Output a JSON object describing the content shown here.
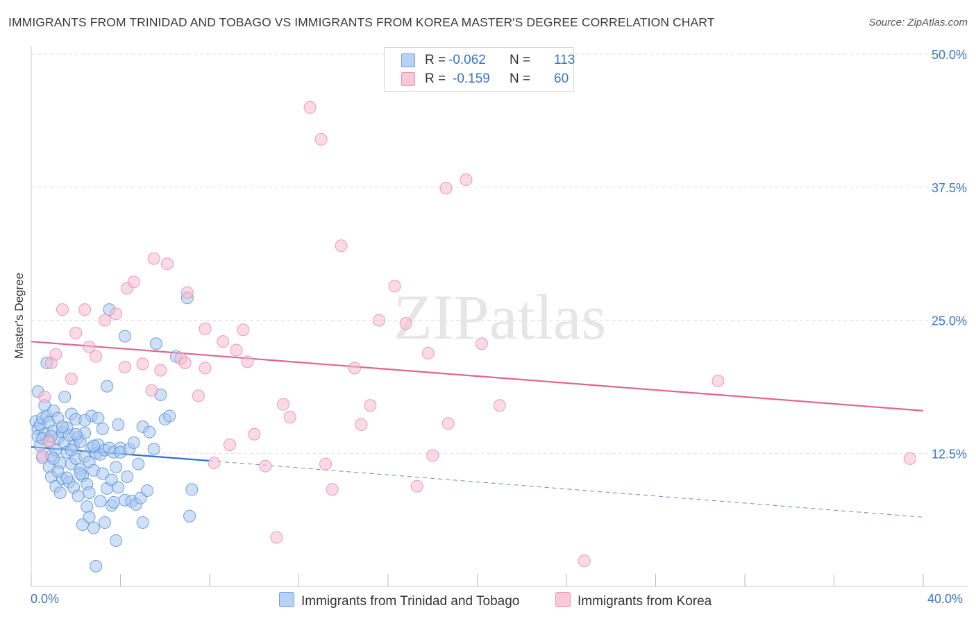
{
  "chart_title": "IMMIGRANTS FROM TRINIDAD AND TOBAGO VS IMMIGRANTS FROM KOREA MASTER'S DEGREE CORRELATION CHART",
  "source": "Source: ZipAtlas.com",
  "watermark": "ZIPatlas",
  "legend": {
    "r_label": "R =",
    "n_label": "N =",
    "rows": [
      {
        "r": "-0.062",
        "n": "113"
      },
      {
        "r": "-0.159",
        "n": "60"
      }
    ]
  },
  "bottom_legend": [
    "Immigrants from Trinidad and Tobago",
    "Immigrants from Korea"
  ],
  "colors": {
    "blue_fill": "#a9c8f0",
    "blue_stroke": "#5b91d6",
    "blue_line": "#2b6fcf",
    "pink_fill": "#f7bcd0",
    "pink_stroke": "#e58aa9",
    "pink_line": "#e0648f",
    "tick_text": "#3a76c8",
    "grid": "#dddddd"
  },
  "chart_data": {
    "type": "scatter",
    "title": "IMMIGRANTS FROM TRINIDAD AND TOBAGO VS IMMIGRANTS FROM KOREA MASTER'S DEGREE CORRELATION CHART",
    "xlabel": "",
    "ylabel": "Master's Degree",
    "xlim": [
      0,
      40
    ],
    "ylim": [
      0,
      50
    ],
    "x_tick_labels": [
      "0.0%",
      "40.0%"
    ],
    "y_ticks": [
      12.5,
      25.0,
      37.5,
      50.0
    ],
    "y_tick_labels": [
      "12.5%",
      "25.0%",
      "37.5%",
      "50.0%"
    ],
    "grid": true,
    "legend_position": "top-center",
    "series": [
      {
        "name": "Immigrants from Trinidad and Tobago",
        "r": -0.062,
        "n": 113,
        "trend": {
          "x_start": 0,
          "y_start": 13.1,
          "x_solid_end": 8.0,
          "y_solid_end": 11.8,
          "x_end": 40,
          "y_end": 6.5
        },
        "points": [
          [
            0.2,
            15.5
          ],
          [
            0.3,
            14.8
          ],
          [
            0.3,
            14.1
          ],
          [
            0.4,
            15.2
          ],
          [
            0.4,
            13.2
          ],
          [
            0.5,
            15.8
          ],
          [
            0.5,
            12.1
          ],
          [
            0.6,
            14.3
          ],
          [
            0.6,
            17.0
          ],
          [
            0.7,
            16.0
          ],
          [
            0.7,
            21.0
          ],
          [
            0.8,
            15.4
          ],
          [
            0.8,
            13.7
          ],
          [
            0.8,
            11.2
          ],
          [
            0.9,
            12.3
          ],
          [
            0.9,
            10.3
          ],
          [
            1.0,
            14.6
          ],
          [
            1.0,
            16.5
          ],
          [
            1.1,
            12.8
          ],
          [
            1.1,
            9.4
          ],
          [
            1.2,
            15.8
          ],
          [
            1.2,
            13.9
          ],
          [
            1.3,
            11.6
          ],
          [
            1.3,
            8.8
          ],
          [
            1.4,
            14.5
          ],
          [
            1.4,
            10.1
          ],
          [
            1.5,
            13.5
          ],
          [
            1.5,
            17.8
          ],
          [
            1.6,
            14.9
          ],
          [
            1.6,
            12.6
          ],
          [
            1.7,
            9.8
          ],
          [
            1.7,
            14.2
          ],
          [
            1.8,
            16.2
          ],
          [
            1.8,
            11.5
          ],
          [
            1.9,
            13.2
          ],
          [
            1.9,
            9.3
          ],
          [
            2.0,
            15.7
          ],
          [
            2.0,
            12.0
          ],
          [
            2.1,
            14.0
          ],
          [
            2.1,
            8.5
          ],
          [
            2.2,
            11.0
          ],
          [
            2.2,
            13.6
          ],
          [
            2.3,
            10.4
          ],
          [
            2.3,
            5.8
          ],
          [
            2.4,
            14.4
          ],
          [
            2.4,
            12.2
          ],
          [
            2.5,
            7.5
          ],
          [
            2.5,
            9.6
          ],
          [
            2.6,
            11.7
          ],
          [
            2.6,
            6.5
          ],
          [
            2.7,
            13.0
          ],
          [
            2.7,
            16.0
          ],
          [
            2.8,
            5.5
          ],
          [
            2.8,
            10.9
          ],
          [
            2.9,
            12.5
          ],
          [
            2.9,
            1.9
          ],
          [
            3.0,
            15.8
          ],
          [
            3.0,
            13.3
          ],
          [
            3.1,
            12.4
          ],
          [
            3.1,
            8.0
          ],
          [
            3.2,
            14.8
          ],
          [
            3.2,
            10.6
          ],
          [
            3.3,
            6.0
          ],
          [
            3.3,
            12.8
          ],
          [
            3.4,
            18.8
          ],
          [
            3.4,
            9.2
          ],
          [
            3.5,
            26.0
          ],
          [
            3.5,
            13.0
          ],
          [
            3.6,
            7.6
          ],
          [
            3.6,
            10.0
          ],
          [
            3.7,
            12.6
          ],
          [
            3.7,
            7.9
          ],
          [
            3.8,
            4.3
          ],
          [
            3.8,
            11.2
          ],
          [
            3.9,
            9.3
          ],
          [
            3.9,
            15.2
          ],
          [
            4.0,
            13.0
          ],
          [
            4.0,
            12.6
          ],
          [
            4.2,
            23.5
          ],
          [
            4.2,
            8.1
          ],
          [
            4.3,
            10.3
          ],
          [
            4.4,
            12.9
          ],
          [
            4.5,
            8.0
          ],
          [
            4.6,
            13.5
          ],
          [
            4.7,
            7.7
          ],
          [
            4.8,
            11.5
          ],
          [
            4.9,
            8.3
          ],
          [
            5.0,
            15.0
          ],
          [
            5.0,
            6.0
          ],
          [
            5.2,
            9.0
          ],
          [
            5.3,
            14.5
          ],
          [
            5.5,
            12.9
          ],
          [
            5.6,
            22.8
          ],
          [
            5.8,
            18.0
          ],
          [
            6.0,
            15.7
          ],
          [
            6.2,
            16.0
          ],
          [
            6.5,
            21.6
          ],
          [
            7.0,
            27.1
          ],
          [
            7.1,
            6.6
          ],
          [
            7.2,
            9.1
          ],
          [
            0.3,
            18.3
          ],
          [
            0.5,
            13.9
          ],
          [
            0.9,
            14.1
          ],
          [
            1.0,
            12.0
          ],
          [
            1.2,
            10.8
          ],
          [
            1.4,
            15.0
          ],
          [
            1.6,
            10.2
          ],
          [
            1.8,
            12.8
          ],
          [
            2.0,
            14.3
          ],
          [
            2.2,
            10.6
          ],
          [
            2.4,
            15.6
          ],
          [
            2.6,
            8.8
          ],
          [
            2.8,
            13.2
          ]
        ]
      },
      {
        "name": "Immigrants from Korea",
        "r": -0.159,
        "n": 60,
        "trend": {
          "x_start": 0,
          "y_start": 23.0,
          "x_end": 40,
          "y_end": 16.5
        },
        "points": [
          [
            0.5,
            12.3
          ],
          [
            0.6,
            17.8
          ],
          [
            0.8,
            13.6
          ],
          [
            0.9,
            21.0
          ],
          [
            1.1,
            21.8
          ],
          [
            1.4,
            26.0
          ],
          [
            1.8,
            19.5
          ],
          [
            2.0,
            23.8
          ],
          [
            2.4,
            26.0
          ],
          [
            2.6,
            22.5
          ],
          [
            2.9,
            21.6
          ],
          [
            3.3,
            25.0
          ],
          [
            3.8,
            25.6
          ],
          [
            4.2,
            20.6
          ],
          [
            4.3,
            28.0
          ],
          [
            4.6,
            28.6
          ],
          [
            5.0,
            20.9
          ],
          [
            5.4,
            18.4
          ],
          [
            5.5,
            30.8
          ],
          [
            5.8,
            20.3
          ],
          [
            6.1,
            30.3
          ],
          [
            6.7,
            21.4
          ],
          [
            6.9,
            21.0
          ],
          [
            7.0,
            27.6
          ],
          [
            7.5,
            17.9
          ],
          [
            7.8,
            20.5
          ],
          [
            7.8,
            24.2
          ],
          [
            8.2,
            11.6
          ],
          [
            8.6,
            23.0
          ],
          [
            8.9,
            13.3
          ],
          [
            9.2,
            22.2
          ],
          [
            9.5,
            24.1
          ],
          [
            9.7,
            21.1
          ],
          [
            10.0,
            14.3
          ],
          [
            10.5,
            11.3
          ],
          [
            11.0,
            4.6
          ],
          [
            11.3,
            17.1
          ],
          [
            11.6,
            15.9
          ],
          [
            12.5,
            45.0
          ],
          [
            13.0,
            42.0
          ],
          [
            13.2,
            11.5
          ],
          [
            13.5,
            9.1
          ],
          [
            13.9,
            32.0
          ],
          [
            14.5,
            20.5
          ],
          [
            14.8,
            15.2
          ],
          [
            15.2,
            17.0
          ],
          [
            15.6,
            25.0
          ],
          [
            16.3,
            28.2
          ],
          [
            16.8,
            24.7
          ],
          [
            17.3,
            9.4
          ],
          [
            17.8,
            21.9
          ],
          [
            18.0,
            12.3
          ],
          [
            18.6,
            37.4
          ],
          [
            18.7,
            15.3
          ],
          [
            19.5,
            38.2
          ],
          [
            20.2,
            22.8
          ],
          [
            21.0,
            17.0
          ],
          [
            24.8,
            2.4
          ],
          [
            30.8,
            19.3
          ],
          [
            39.4,
            12.0
          ]
        ]
      }
    ]
  }
}
